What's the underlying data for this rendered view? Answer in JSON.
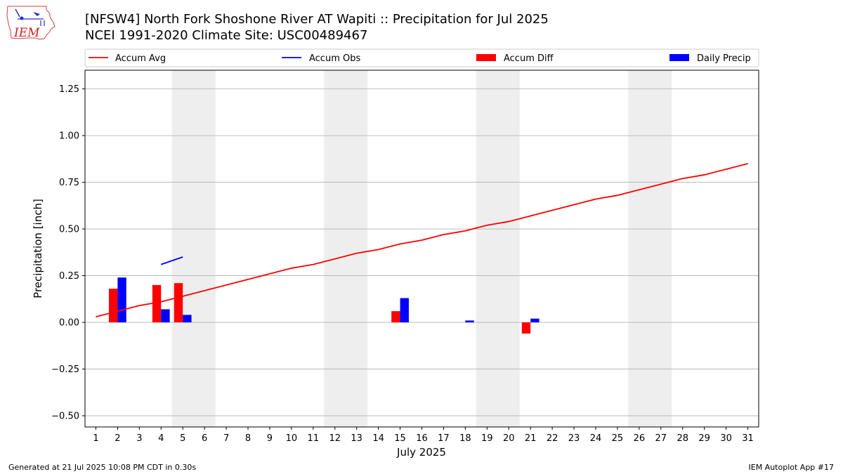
{
  "header": {
    "title_line1": "[NFSW4] North Fork Shoshone River  AT Wapiti :: Precipitation for Jul 2025",
    "title_line2": "NCEI 1991-2020 Climate Site: USC00489467",
    "logo_text": "IEM"
  },
  "footer": {
    "left": "Generated at 21 Jul 2025 10:08 PM CDT in 0.30s",
    "right": "IEM Autoplot App #17"
  },
  "colors": {
    "accum_avg": "#ff0000",
    "accum_obs": "#0000ff",
    "accum_diff": "#ff0000",
    "daily_precip": "#0000ff",
    "weekend_shade": "#eeeeee",
    "grid": "#b0b0b0"
  },
  "chart_data": {
    "type": "bar",
    "xlabel": "July 2025",
    "ylabel": "Precipitation [inch]",
    "xlim": [
      0.5,
      31.5
    ],
    "ylim": [
      -0.56,
      1.35
    ],
    "yticks": [
      -0.5,
      -0.25,
      0.0,
      0.25,
      0.5,
      0.75,
      1.0,
      1.25
    ],
    "ytick_labels": [
      "−0.50",
      "−0.25",
      "0.00",
      "0.25",
      "0.50",
      "0.75",
      "1.00",
      "1.25"
    ],
    "x": [
      1,
      2,
      3,
      4,
      5,
      6,
      7,
      8,
      9,
      10,
      11,
      12,
      13,
      14,
      15,
      16,
      17,
      18,
      19,
      20,
      21,
      22,
      23,
      24,
      25,
      26,
      27,
      28,
      29,
      30,
      31
    ],
    "xtick_labels": [
      "1",
      "2",
      "3",
      "4",
      "5",
      "6",
      "7",
      "8",
      "9",
      "10",
      "11",
      "12",
      "13",
      "14",
      "15",
      "16",
      "17",
      "18",
      "19",
      "20",
      "21",
      "22",
      "23",
      "24",
      "25",
      "26",
      "27",
      "28",
      "29",
      "30",
      "31"
    ],
    "grid": "horizontal",
    "legend_position": "top",
    "weekend_shading": [
      [
        5,
        6
      ],
      [
        12,
        13
      ],
      [
        19,
        20
      ],
      [
        26,
        27
      ]
    ],
    "series": [
      {
        "name": "Accum Avg",
        "kind": "line",
        "x": [
          1,
          2,
          3,
          4,
          5,
          6,
          7,
          8,
          9,
          10,
          11,
          12,
          13,
          14,
          15,
          16,
          17,
          18,
          19,
          20,
          21,
          22,
          23,
          24,
          25,
          26,
          27,
          28,
          29,
          30,
          31
        ],
        "values": [
          0.03,
          0.06,
          0.09,
          0.11,
          0.14,
          0.17,
          0.2,
          0.23,
          0.26,
          0.29,
          0.31,
          0.34,
          0.37,
          0.39,
          0.42,
          0.44,
          0.47,
          0.49,
          0.52,
          0.54,
          0.57,
          0.6,
          0.63,
          0.66,
          0.68,
          0.71,
          0.74,
          0.77,
          0.79,
          0.82,
          0.85
        ]
      },
      {
        "name": "Accum Obs",
        "kind": "line",
        "x": [
          4,
          5
        ],
        "values": [
          0.31,
          0.35
        ]
      },
      {
        "name": "Accum Diff",
        "kind": "bar",
        "x": [
          2,
          4,
          5,
          15,
          21
        ],
        "values": [
          0.18,
          0.2,
          0.21,
          0.06,
          -0.06
        ]
      },
      {
        "name": "Daily Precip",
        "kind": "bar",
        "x": [
          2,
          4,
          5,
          15,
          18,
          21
        ],
        "values": [
          0.24,
          0.07,
          0.04,
          0.13,
          0.01,
          0.02
        ]
      }
    ]
  }
}
